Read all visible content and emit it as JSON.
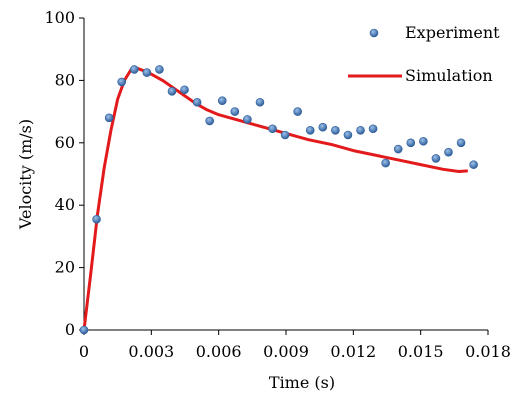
{
  "chart_data": {
    "type": "scatter",
    "xlabel": "Time (s)",
    "ylabel": "Velocity (m/s)",
    "xlim": [
      0,
      0.018
    ],
    "ylim": [
      0,
      100
    ],
    "xticks": [
      "0",
      "0.003",
      "0.006",
      "0.009",
      "0.012",
      "0.015",
      "0.018"
    ],
    "yticks": [
      "0",
      "20",
      "40",
      "60",
      "80",
      "100"
    ],
    "grid": false,
    "legend": {
      "position": "top-right"
    },
    "series": [
      {
        "name": "Experiment",
        "kind": "markers",
        "color": "#4a7ab8",
        "points": [
          [
            0.0,
            0.0
          ],
          [
            0.00056,
            35.5
          ],
          [
            0.00112,
            68.0
          ],
          [
            0.00168,
            79.5
          ],
          [
            0.00224,
            83.5
          ],
          [
            0.0028,
            82.5
          ],
          [
            0.00336,
            83.5
          ],
          [
            0.00392,
            76.5
          ],
          [
            0.00448,
            77.0
          ],
          [
            0.00504,
            73.0
          ],
          [
            0.0056,
            67.0
          ],
          [
            0.00616,
            73.5
          ],
          [
            0.00672,
            70.0
          ],
          [
            0.00728,
            67.5
          ],
          [
            0.00784,
            73.0
          ],
          [
            0.0084,
            64.5
          ],
          [
            0.00896,
            62.5
          ],
          [
            0.00952,
            70.0
          ],
          [
            0.01008,
            64.0
          ],
          [
            0.01064,
            65.0
          ],
          [
            0.0112,
            64.0
          ],
          [
            0.01176,
            62.5
          ],
          [
            0.01232,
            64.0
          ],
          [
            0.01288,
            64.5
          ],
          [
            0.01344,
            53.5
          ],
          [
            0.014,
            58.0
          ],
          [
            0.01456,
            60.0
          ],
          [
            0.01512,
            60.5
          ],
          [
            0.01568,
            55.0
          ],
          [
            0.01624,
            57.0
          ],
          [
            0.0168,
            60.0
          ],
          [
            0.01736,
            53.0
          ]
        ]
      },
      {
        "name": "Simulation",
        "kind": "line",
        "color": "#e31a1c",
        "points": [
          [
            0.0,
            0.0
          ],
          [
            0.0003,
            18.0
          ],
          [
            0.0006,
            37.0
          ],
          [
            0.0009,
            52.0
          ],
          [
            0.0012,
            64.0
          ],
          [
            0.0015,
            74.0
          ],
          [
            0.0018,
            80.0
          ],
          [
            0.0021,
            83.5
          ],
          [
            0.0024,
            83.8
          ],
          [
            0.0027,
            83.0
          ],
          [
            0.003,
            82.0
          ],
          [
            0.0035,
            80.0
          ],
          [
            0.004,
            77.5
          ],
          [
            0.0045,
            75.0
          ],
          [
            0.005,
            72.5
          ],
          [
            0.0055,
            70.5
          ],
          [
            0.006,
            69.0
          ],
          [
            0.007,
            67.0
          ],
          [
            0.008,
            65.0
          ],
          [
            0.009,
            63.0
          ],
          [
            0.01,
            61.0
          ],
          [
            0.011,
            59.5
          ],
          [
            0.012,
            57.5
          ],
          [
            0.013,
            56.0
          ],
          [
            0.014,
            54.5
          ],
          [
            0.015,
            53.0
          ],
          [
            0.016,
            51.5
          ],
          [
            0.0167,
            50.8
          ],
          [
            0.0171,
            51.0
          ]
        ]
      }
    ]
  }
}
